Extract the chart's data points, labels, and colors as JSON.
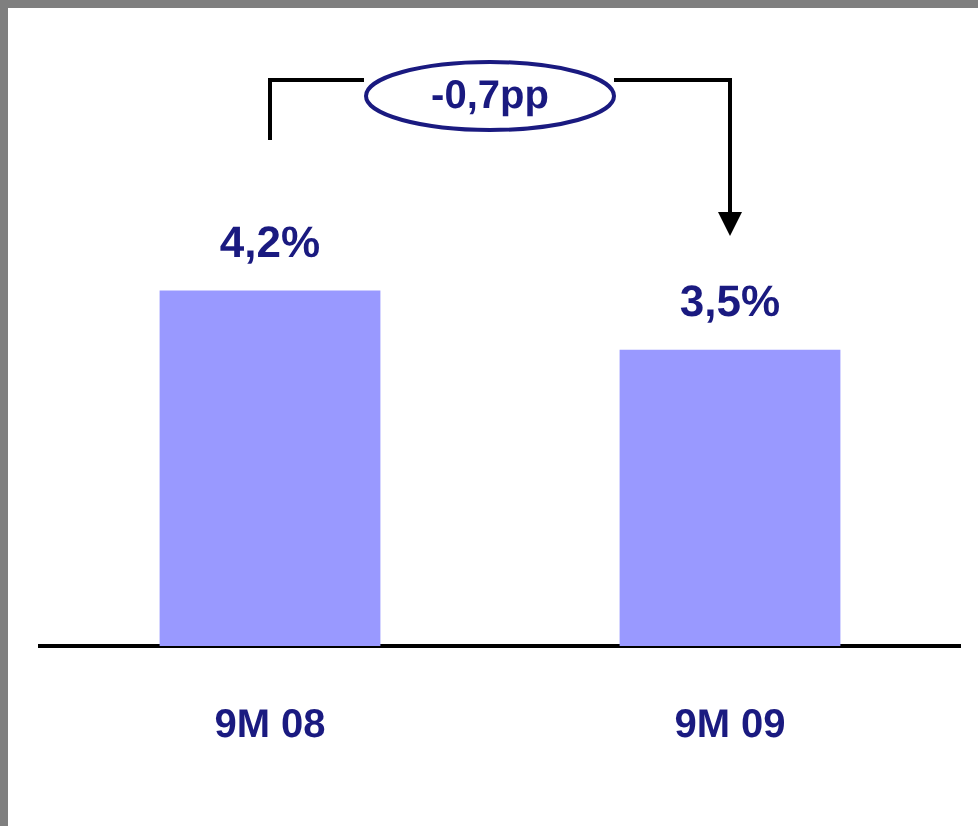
{
  "chart_data": {
    "type": "bar",
    "categories": [
      "9M 08",
      "9M 09"
    ],
    "values": [
      4.2,
      3.5
    ],
    "value_labels": [
      "4,2%",
      "3,5%"
    ],
    "color": "#9999ff",
    "annotations": [
      "-0,7pp"
    ],
    "grid": false,
    "legend": false
  }
}
